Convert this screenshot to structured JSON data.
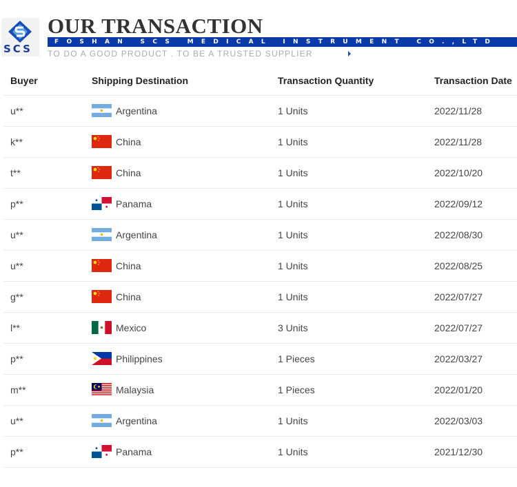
{
  "header": {
    "logo_text": "SCS",
    "title": "OUR TRANSACTION",
    "company": "FOSHAN SCS MEDICAL INSTRUMENT CO.,LTD",
    "slogan": "TO DO A GOOD PRODUCT . TO BE A TRUSTED SUPPLIER",
    "brand_color": "#0a3ba8"
  },
  "table": {
    "columns": [
      "Buyer",
      "Shipping Destination",
      "Transaction Quantity",
      "Transaction Date"
    ],
    "rows": [
      {
        "buyer": "u**",
        "destination": "Argentina",
        "quantity": "1 Units",
        "date": "2022/11/28"
      },
      {
        "buyer": "k**",
        "destination": "China",
        "quantity": "1 Units",
        "date": "2022/11/28"
      },
      {
        "buyer": "t**",
        "destination": "China",
        "quantity": "1 Units",
        "date": "2022/10/20"
      },
      {
        "buyer": "p**",
        "destination": "Panama",
        "quantity": "1 Units",
        "date": "2022/09/12"
      },
      {
        "buyer": "u**",
        "destination": "Argentina",
        "quantity": "1 Units",
        "date": "2022/08/30"
      },
      {
        "buyer": "u**",
        "destination": "China",
        "quantity": "1 Units",
        "date": "2022/08/25"
      },
      {
        "buyer": "g**",
        "destination": "China",
        "quantity": "1 Units",
        "date": "2022/07/27"
      },
      {
        "buyer": "l**",
        "destination": "Mexico",
        "quantity": "3 Units",
        "date": "2022/07/27"
      },
      {
        "buyer": "p**",
        "destination": "Philippines",
        "quantity": "1 Pieces",
        "date": "2022/03/27"
      },
      {
        "buyer": "m**",
        "destination": "Malaysia",
        "quantity": "1 Pieces",
        "date": "2022/01/20"
      },
      {
        "buyer": "u**",
        "destination": "Argentina",
        "quantity": "1 Units",
        "date": "2022/03/03"
      },
      {
        "buyer": "p**",
        "destination": "Panama",
        "quantity": "1 Units",
        "date": "2021/12/30"
      }
    ]
  }
}
